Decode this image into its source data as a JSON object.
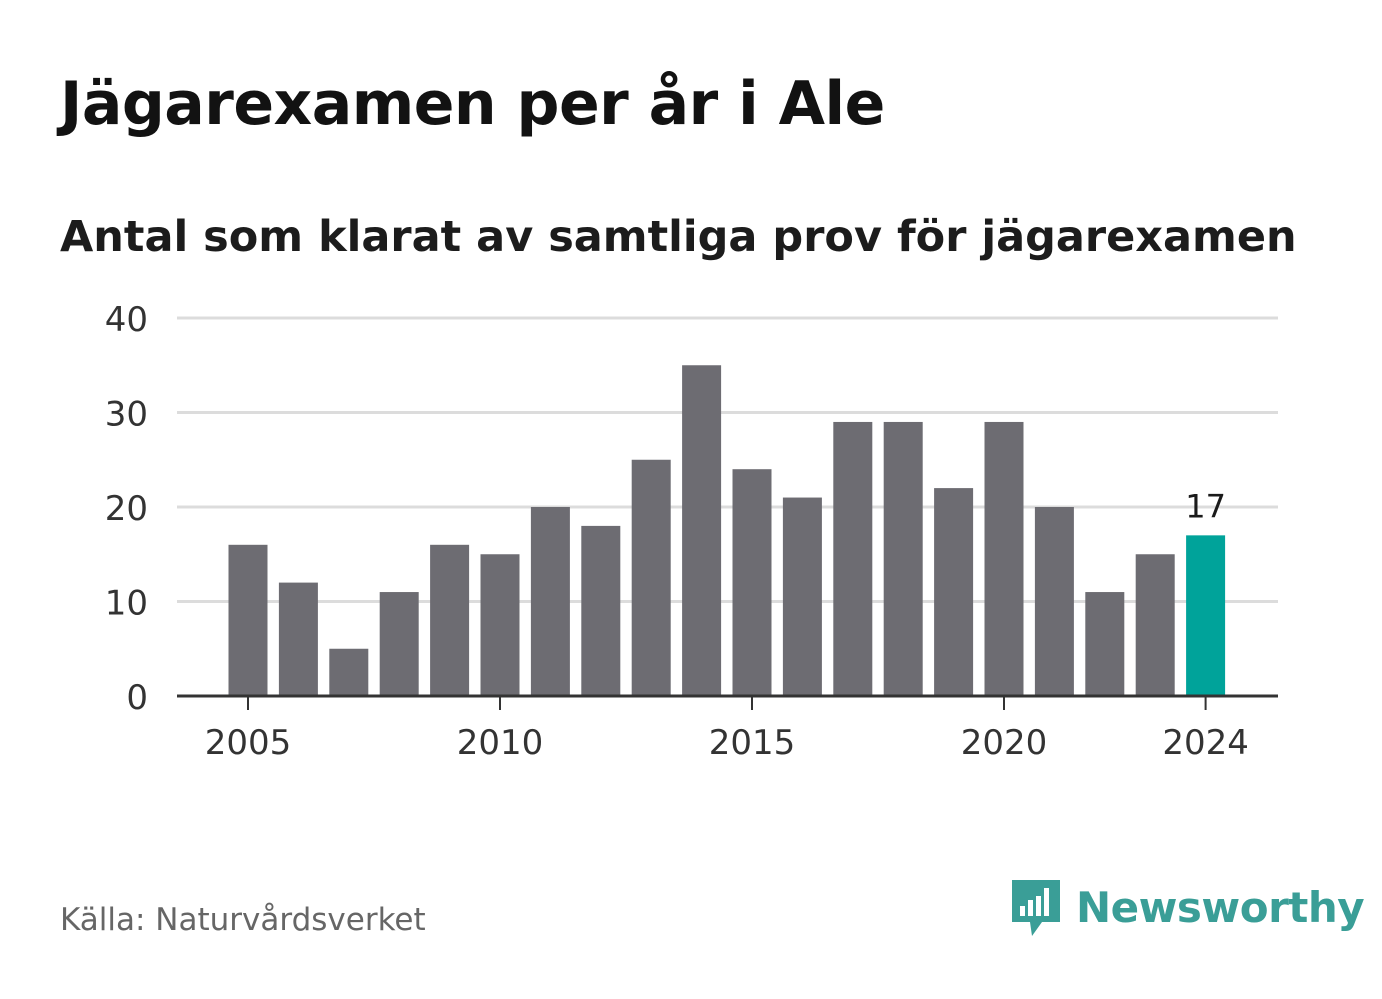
{
  "header": {
    "title": "Jägarexamen per år i Ale",
    "subtitle": "Antal som klarat av samtliga prov för jägarexamen"
  },
  "footer": {
    "source": "Källa: Naturvårdsverket",
    "brand_name": "Newsworthy",
    "brand_icon": "bar-chart-speech-bubble-icon"
  },
  "colors": {
    "bar": "#6d6c72",
    "highlight": "#00a39a",
    "grid": "#dcdcdc",
    "axis": "#333333",
    "brand": "#3a9e97"
  },
  "chart_data": {
    "type": "bar",
    "title": "Jägarexamen per år i Ale",
    "subtitle": "Antal som klarat av samtliga prov för jägarexamen",
    "categories": [
      "2005",
      "2006",
      "2007",
      "2008",
      "2009",
      "2010",
      "2011",
      "2012",
      "2013",
      "2014",
      "2015",
      "2016",
      "2017",
      "2018",
      "2019",
      "2020",
      "2021",
      "2022",
      "2023",
      "2024"
    ],
    "values": [
      16,
      12,
      5,
      11,
      16,
      15,
      20,
      18,
      25,
      35,
      24,
      21,
      29,
      29,
      22,
      29,
      20,
      11,
      15,
      17
    ],
    "ylim": [
      0,
      40
    ],
    "y_ticks": [
      0,
      10,
      20,
      30,
      40
    ],
    "x_tick_labels": [
      "2005",
      "2010",
      "2015",
      "2020",
      "2024"
    ],
    "highlight_category": "2024",
    "data_labels": [
      {
        "category": "2024",
        "text": "17"
      }
    ],
    "xlabel": "",
    "ylabel": "",
    "grid": true,
    "legend": "none"
  }
}
